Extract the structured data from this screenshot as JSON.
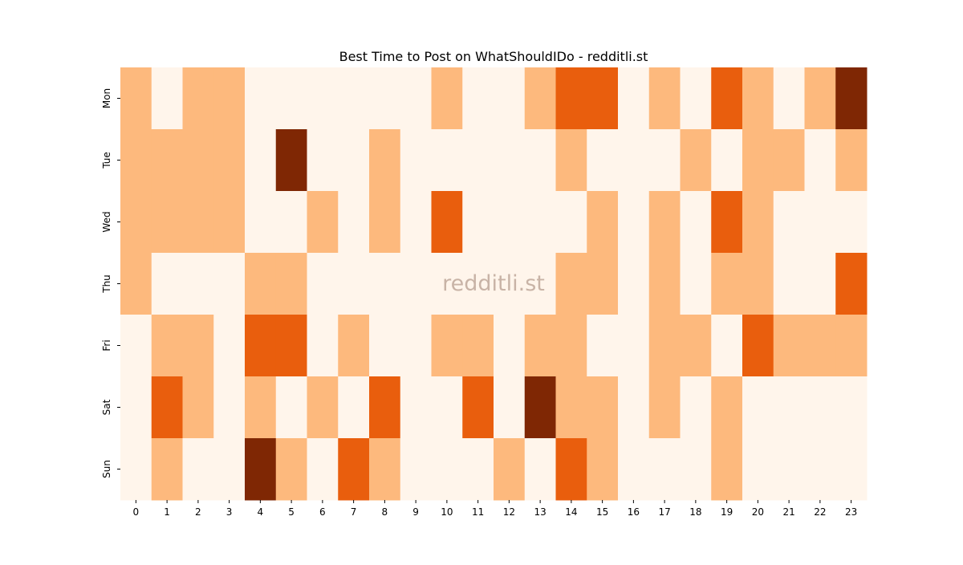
{
  "chart_data": {
    "type": "heatmap",
    "title": "Best Time to Post on WhatShouldIDo - redditli.st",
    "watermark": "redditli.st",
    "xlabel": "",
    "ylabel": "",
    "x_categories": [
      "0",
      "1",
      "2",
      "3",
      "4",
      "5",
      "6",
      "7",
      "8",
      "9",
      "10",
      "11",
      "12",
      "13",
      "14",
      "15",
      "16",
      "17",
      "18",
      "19",
      "20",
      "21",
      "22",
      "23"
    ],
    "y_categories": [
      "Mon",
      "Tue",
      "Wed",
      "Thu",
      "Fri",
      "Sat",
      "Sun"
    ],
    "colormap": "Oranges",
    "level_colors": [
      "#fff5eb",
      "#fdb97d",
      "#e95e0d",
      "#7f2704"
    ],
    "colorbar": false,
    "values": [
      [
        1,
        0,
        1,
        1,
        0,
        0,
        0,
        0,
        0,
        0,
        1,
        0,
        0,
        1,
        2,
        2,
        0,
        1,
        0,
        2,
        1,
        0,
        1,
        3
      ],
      [
        1,
        1,
        1,
        1,
        0,
        3,
        0,
        0,
        1,
        0,
        0,
        0,
        0,
        0,
        1,
        0,
        0,
        0,
        1,
        0,
        1,
        1,
        0,
        1
      ],
      [
        1,
        1,
        1,
        1,
        0,
        0,
        1,
        0,
        1,
        0,
        2,
        0,
        0,
        0,
        0,
        1,
        0,
        1,
        0,
        2,
        1,
        0,
        0,
        0
      ],
      [
        1,
        0,
        0,
        0,
        1,
        1,
        0,
        0,
        0,
        0,
        0,
        0,
        0,
        0,
        1,
        1,
        0,
        1,
        0,
        1,
        1,
        0,
        0,
        2
      ],
      [
        0,
        1,
        1,
        0,
        2,
        2,
        0,
        1,
        0,
        0,
        1,
        1,
        0,
        1,
        1,
        0,
        0,
        1,
        1,
        0,
        2,
        1,
        1,
        1
      ],
      [
        0,
        2,
        1,
        0,
        1,
        0,
        1,
        0,
        2,
        0,
        0,
        2,
        0,
        3,
        1,
        1,
        0,
        1,
        0,
        1,
        0,
        0,
        0,
        0
      ],
      [
        0,
        1,
        0,
        0,
        3,
        1,
        0,
        2,
        1,
        0,
        0,
        0,
        1,
        0,
        2,
        1,
        0,
        0,
        0,
        1,
        0,
        0,
        0,
        0
      ]
    ]
  }
}
